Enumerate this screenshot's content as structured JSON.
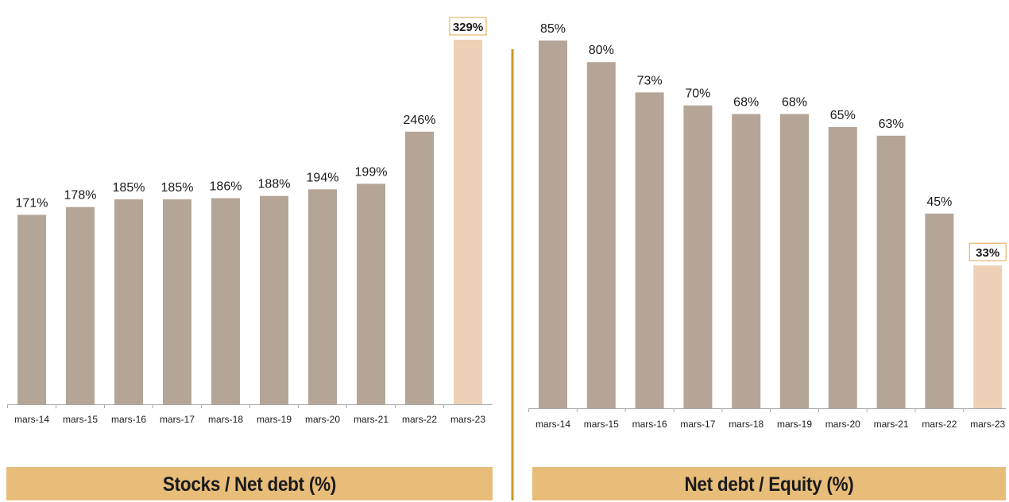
{
  "colors": {
    "bar": "#b5a597",
    "highlight_bar": "#ecd1b7",
    "highlight_box_border": "#e3a64a",
    "separator": "#c99a1e",
    "title_band": "#e8bd7a",
    "text": "#1a1a1a",
    "axis": "#a8a8a8"
  },
  "chart_data": [
    {
      "type": "bar",
      "title": "Stocks / Net debt (%)",
      "categories": [
        "mars-14",
        "mars-15",
        "mars-16",
        "mars-17",
        "mars-18",
        "mars-19",
        "mars-20",
        "mars-21",
        "mars-22",
        "mars-23"
      ],
      "values": [
        171,
        178,
        185,
        185,
        186,
        188,
        194,
        199,
        246,
        329
      ],
      "value_labels": [
        "171%",
        "178%",
        "185%",
        "185%",
        "186%",
        "188%",
        "194%",
        "199%",
        "246%",
        "329%"
      ],
      "highlight_index": 9,
      "ylim": [
        0,
        329
      ],
      "grid": false
    },
    {
      "type": "bar",
      "title": "Net debt / Equity (%)",
      "categories": [
        "mars-14",
        "mars-15",
        "mars-16",
        "mars-17",
        "mars-18",
        "mars-19",
        "mars-20",
        "mars-21",
        "mars-22",
        "mars-23"
      ],
      "values": [
        85,
        80,
        73,
        70,
        68,
        68,
        65,
        63,
        45,
        33
      ],
      "value_labels": [
        "85%",
        "80%",
        "73%",
        "70%",
        "68%",
        "68%",
        "65%",
        "63%",
        "45%",
        "33%"
      ],
      "highlight_index": 9,
      "ylim": [
        0,
        85
      ],
      "grid": false
    }
  ]
}
